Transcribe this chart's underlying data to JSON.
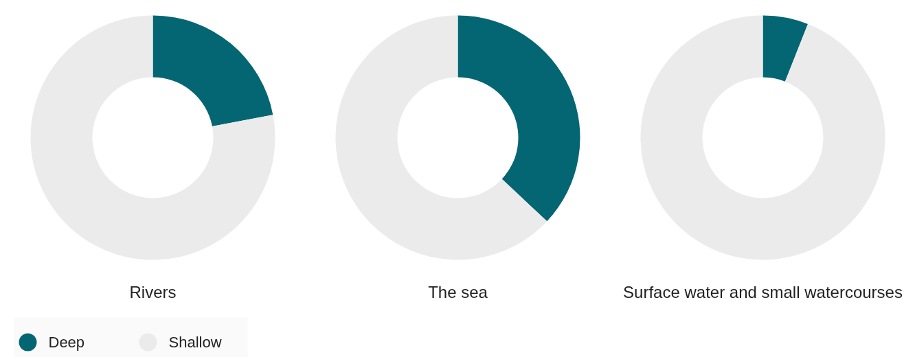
{
  "chart_data": [
    {
      "type": "donut",
      "title": "Rivers",
      "categories": [
        "Deep",
        "Shallow"
      ],
      "values": [
        22,
        78
      ],
      "colors": [
        "#036672",
        "#ebebeb"
      ],
      "legend": "bottom left"
    },
    {
      "type": "donut",
      "title": "The sea",
      "categories": [
        null,
        null
      ],
      "values": [
        37,
        63
      ],
      "colors": [
        "#036672",
        "#ebebeb"
      ]
    },
    {
      "type": "donut",
      "title": "Surface water and small watercourses",
      "categories": [
        null,
        null
      ],
      "values": [
        6,
        94
      ],
      "colors": [
        "#036672",
        "#ebebeb"
      ]
    }
  ]
}
